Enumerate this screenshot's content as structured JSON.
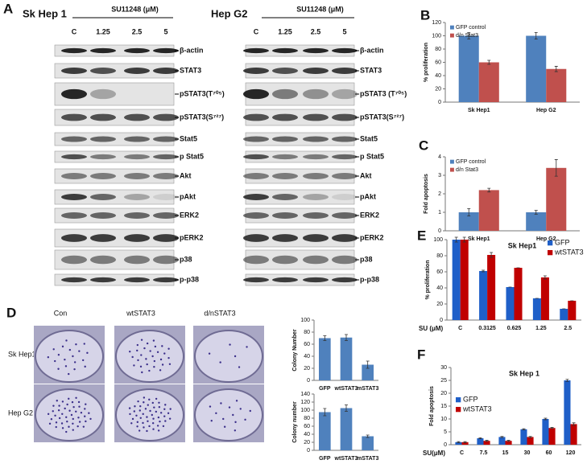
{
  "panel_labels": {
    "a": "A",
    "b": "B",
    "c": "C",
    "d": "D",
    "e": "E",
    "f": "F"
  },
  "blots": [
    {
      "title": "Sk Hep 1",
      "treatment": "SU11248 (μM)",
      "columns": [
        "C",
        "1.25",
        "2.5",
        "5"
      ],
      "rows": [
        "β-actin",
        "STAT3",
        "pSTAT3(T⁷⁰⁵)",
        "pSTAT3(S⁷²⁷)",
        "Stat5",
        "p Stat5",
        "Akt",
        "pAkt",
        "ERK2",
        "pERK2",
        "p38",
        "p-p38"
      ]
    },
    {
      "title": "Hep G2",
      "treatment": "SU11248 (μM)",
      "columns": [
        "C",
        "1.25",
        "2.5",
        "5"
      ],
      "rows": [
        "β-actin",
        "STAT3",
        "pSTAT3 (T⁷⁰⁵)",
        "pSTAT3(S⁷²⁷)",
        "Stat5",
        "p Stat5",
        "Akt",
        "pAkt",
        "ERK2",
        "pERK2",
        "p38",
        "p-p38"
      ]
    }
  ],
  "colony": {
    "columns": [
      "Con",
      "wtSTAT3",
      "d/nSTAT3"
    ],
    "rows": [
      "Sk Hep1",
      "Hep G2"
    ]
  },
  "chart_data": [
    {
      "type": "bar",
      "ylabel": "% proliferation",
      "categories": [
        "Sk Hep1",
        "Hep G2"
      ],
      "series": [
        {
          "name": "GFP control",
          "color": "#4f81bd",
          "values": [
            100,
            100
          ],
          "errors": [
            5,
            5
          ]
        },
        {
          "name": "d/n Stat3",
          "color": "#c0504d",
          "values": [
            60,
            50
          ],
          "errors": [
            3,
            4
          ]
        }
      ],
      "ylim": [
        0,
        120
      ],
      "yticks": [
        0,
        20,
        40,
        60,
        80,
        100,
        120
      ],
      "legend": "upper left"
    },
    {
      "type": "bar",
      "ylabel": "Fold apoptosis",
      "categories": [
        "Sk Hep1",
        "Hep G2"
      ],
      "series": [
        {
          "name": "GFP control",
          "color": "#4f81bd",
          "values": [
            1,
            1
          ],
          "errors": [
            0.2,
            0.1
          ]
        },
        {
          "name": "d/n Stat3",
          "color": "#c0504d",
          "values": [
            2.2,
            3.4
          ],
          "errors": [
            0.1,
            0.45
          ]
        }
      ],
      "ylim": [
        0,
        4
      ],
      "yticks": [
        0,
        1,
        2,
        3,
        4
      ],
      "legend": "upper left"
    },
    {
      "type": "bar",
      "title": "Sk Hep1",
      "ylabel": "% proliferation",
      "xlabel": "SU (μM)",
      "categories": [
        "C",
        "0.3125",
        "0.625",
        "1.25",
        "2.5"
      ],
      "series": [
        {
          "name": "GFP",
          "color": "#1f5fc8",
          "values": [
            100,
            61,
            41,
            27,
            14
          ],
          "errors": [
            3,
            1,
            0,
            0,
            0
          ]
        },
        {
          "name": "wtSTAT3",
          "color": "#c00000",
          "values": [
            100,
            81,
            65,
            53,
            24
          ],
          "errors": [
            3,
            3,
            0,
            2,
            0
          ]
        }
      ],
      "ylim": [
        0,
        100
      ],
      "yticks": [
        0,
        20,
        40,
        60,
        80,
        100
      ],
      "legend": "upper right"
    },
    {
      "type": "bar",
      "title": "Sk Hep 1",
      "ylabel": "Fold apoptosis",
      "xlabel": "SU(μM)",
      "categories": [
        "C",
        "7.5",
        "15",
        "30",
        "60",
        "120"
      ],
      "series": [
        {
          "name": "GFP",
          "color": "#1f5fc8",
          "values": [
            1,
            2.5,
            3,
            6,
            10,
            25
          ],
          "errors": [
            0.2,
            0.2,
            0.2,
            0.2,
            0.3,
            0.4
          ]
        },
        {
          "name": "wtSTAT3",
          "color": "#c00000",
          "values": [
            1,
            1.5,
            1.5,
            3,
            6.5,
            8
          ],
          "errors": [
            0.2,
            0.2,
            0.2,
            0.2,
            0.2,
            0.5
          ]
        }
      ],
      "ylim": [
        0,
        30
      ],
      "yticks": [
        0,
        5,
        10,
        15,
        20,
        25,
        30
      ],
      "legend": "center left"
    },
    {
      "type": "bar",
      "ylabel": "Colony Number",
      "categories": [
        "GFP",
        "wtSTAT3",
        "mSTAT3"
      ],
      "color": "#4f81bd",
      "values": [
        70,
        71,
        26
      ],
      "errors": [
        4,
        5,
        6
      ],
      "ylim": [
        0,
        100
      ],
      "yticks": [
        0,
        20,
        40,
        60,
        80,
        100
      ]
    },
    {
      "type": "bar",
      "ylabel": "Colony number",
      "categories": [
        "GFP",
        "wtSTAT3",
        "mSTAT3"
      ],
      "color": "#4f81bd",
      "values": [
        95,
        105,
        35
      ],
      "errors": [
        9,
        8,
        3
      ],
      "ylim": [
        0,
        140
      ],
      "yticks": [
        0,
        20,
        40,
        60,
        80,
        100,
        120,
        140
      ]
    }
  ]
}
